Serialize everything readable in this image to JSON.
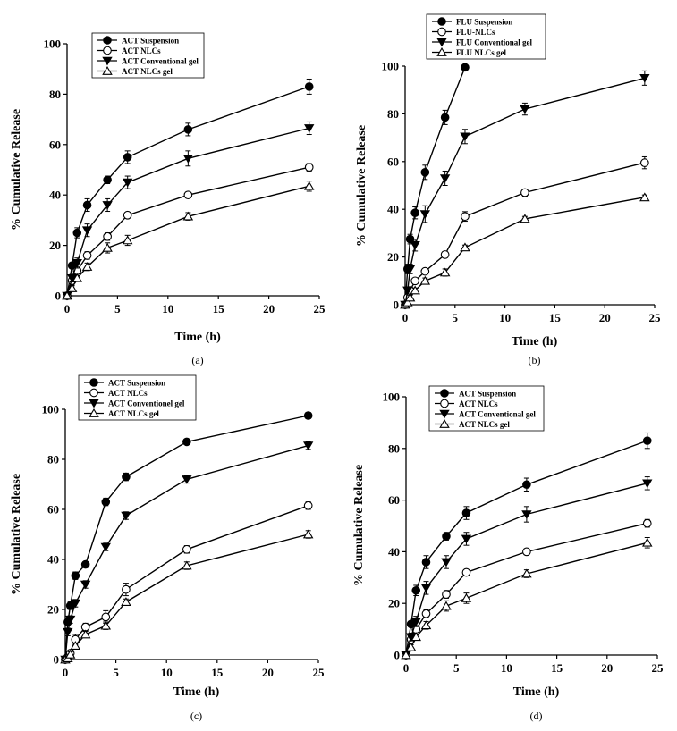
{
  "chart_data": [
    {
      "type": "line",
      "caption": "(a)",
      "xlabel": "Time (h)",
      "ylabel": "% Cumulative Release",
      "xlim": [
        0,
        25
      ],
      "ylim": [
        0,
        100
      ],
      "xticks": [
        "0",
        "5",
        "10",
        "15",
        "20",
        "25"
      ],
      "yticks": [
        "0",
        "20",
        "40",
        "60",
        "80",
        "100"
      ],
      "legend_position": "top-left",
      "series": [
        {
          "name": "ACT Suspension",
          "marker": "filled-circle",
          "x": [
            0,
            0.5,
            1,
            2,
            4,
            6,
            12,
            24
          ],
          "y": [
            0,
            12,
            25,
            36,
            46,
            55,
            66,
            83
          ],
          "err": [
            0,
            1,
            2,
            2.5,
            1.5,
            2.5,
            2.5,
            3
          ]
        },
        {
          "name": "ACT NLCs",
          "marker": "open-circle",
          "x": [
            0,
            0.5,
            1,
            2,
            4,
            6,
            12,
            24
          ],
          "y": [
            0,
            6,
            10,
            16,
            23.5,
            32,
            40,
            51
          ],
          "err": [
            0,
            1,
            1,
            1.5,
            1.5,
            1,
            1.2,
            1.5
          ]
        },
        {
          "name": "ACT Conventional gel",
          "marker": "filled-triangle-down",
          "x": [
            0,
            0.5,
            1,
            2,
            4,
            6,
            12,
            24
          ],
          "y": [
            0,
            7,
            13,
            26,
            36,
            45,
            54.5,
            66.5
          ],
          "err": [
            0,
            1.5,
            2,
            2.5,
            2.5,
            2.5,
            3,
            2.5
          ]
        },
        {
          "name": "ACT NLCs gel",
          "marker": "open-triangle-up",
          "x": [
            0,
            0.5,
            1,
            2,
            4,
            6,
            12,
            24
          ],
          "y": [
            0,
            3,
            7,
            11.5,
            19,
            22,
            31.5,
            43.5
          ],
          "err": [
            0,
            1,
            1,
            1.5,
            2,
            2,
            1.5,
            2
          ]
        }
      ]
    },
    {
      "type": "line",
      "caption": "(b)",
      "xlabel": "Time (h)",
      "ylabel": "% Cumulative Release",
      "xlim": [
        0,
        25
      ],
      "ylim": [
        0,
        100
      ],
      "xticks": [
        "0",
        "5",
        "10",
        "15",
        "20",
        "25"
      ],
      "yticks": [
        "0",
        "20",
        "40",
        "60",
        "80",
        "100"
      ],
      "legend_position": "top-left",
      "series": [
        {
          "name": "FLU Suspension",
          "marker": "filled-circle",
          "x": [
            0,
            0.25,
            0.5,
            1,
            2,
            4,
            6
          ],
          "y": [
            0,
            15,
            27.5,
            38.5,
            55.5,
            78.5,
            99.5
          ],
          "err": [
            0,
            2,
            2,
            2.5,
            3,
            3,
            1
          ]
        },
        {
          "name": "FLU-NLCs",
          "marker": "open-circle",
          "x": [
            0,
            0.25,
            0.5,
            1,
            2,
            4,
            6,
            12,
            24
          ],
          "y": [
            0,
            3,
            6,
            10,
            14,
            21,
            37,
            47,
            59.5
          ],
          "err": [
            0,
            1,
            1,
            1,
            1.2,
            1.2,
            2,
            1.5,
            2.5
          ]
        },
        {
          "name": "FLU Conventional gel",
          "marker": "filled-triangle-down",
          "x": [
            0,
            0.25,
            0.5,
            1,
            2,
            4,
            6,
            12,
            24
          ],
          "y": [
            0,
            6,
            15,
            25,
            38,
            53,
            70.5,
            82,
            95
          ],
          "err": [
            0,
            1.5,
            2,
            2.5,
            3.5,
            3,
            3,
            2.5,
            3
          ]
        },
        {
          "name": "FLU NLCs gel",
          "marker": "open-triangle-up",
          "x": [
            0,
            0.25,
            0.5,
            1,
            2,
            4,
            6,
            12,
            24
          ],
          "y": [
            0,
            1,
            3,
            6,
            10,
            13.5,
            24,
            36,
            45
          ],
          "err": [
            0,
            0.5,
            1,
            1,
            1.2,
            1.5,
            1,
            1,
            1
          ]
        }
      ]
    },
    {
      "type": "line",
      "caption": "(c)",
      "xlabel": "Time (h)",
      "ylabel": "% Cumulative Release",
      "xlim": [
        0,
        25
      ],
      "ylim": [
        0,
        100
      ],
      "xticks": [
        "0",
        "5",
        "10",
        "15",
        "20",
        "25"
      ],
      "yticks": [
        "0",
        "20",
        "40",
        "60",
        "80",
        "100"
      ],
      "legend_position": "top-left",
      "series": [
        {
          "name": "ACT  Suspension",
          "marker": "filled-circle",
          "x": [
            0,
            0.25,
            0.5,
            1,
            2,
            4,
            6,
            12,
            24
          ],
          "y": [
            0,
            15,
            21.5,
            33.5,
            38,
            63,
            73,
            87,
            97.5
          ],
          "err": [
            0,
            1.5,
            1.5,
            1.5,
            1,
            1.5,
            1.5,
            1,
            1.2
          ]
        },
        {
          "name": "ACT NLCs",
          "marker": "open-circle",
          "x": [
            0,
            0.25,
            0.5,
            1,
            2,
            4,
            6,
            12,
            24
          ],
          "y": [
            0,
            1,
            2.5,
            8,
            13,
            17,
            28,
            44,
            61.5
          ],
          "err": [
            0,
            0.5,
            1,
            2,
            1.5,
            2.5,
            2.5,
            1.5,
            1.5
          ]
        },
        {
          "name": "ACT Conventionel gel",
          "marker": "filled-triangle-down",
          "x": [
            0,
            0.25,
            0.5,
            1,
            2,
            4,
            6,
            12,
            24
          ],
          "y": [
            0,
            11,
            16,
            22.5,
            30,
            45,
            57.5,
            72,
            85.5
          ],
          "err": [
            0,
            1.5,
            1.5,
            1.5,
            1.5,
            1.5,
            1.5,
            1.5,
            1.5
          ]
        },
        {
          "name": "ACT NLCs gel",
          "marker": "open-triangle-up",
          "x": [
            0,
            0.25,
            0.5,
            1,
            2,
            4,
            6,
            12,
            24
          ],
          "y": [
            0,
            0.5,
            2,
            5.5,
            10,
            13.5,
            23,
            37.5,
            50
          ],
          "err": [
            0,
            0.5,
            1,
            1,
            1.2,
            1.5,
            1.2,
            1.5,
            1.5
          ]
        }
      ]
    },
    {
      "type": "line",
      "caption": "(d)",
      "xlabel": "Time (h)",
      "ylabel": "% Cumulative Release",
      "xlim": [
        0,
        25
      ],
      "ylim": [
        0,
        100
      ],
      "xticks": [
        "0",
        "5",
        "10",
        "15",
        "20",
        "25"
      ],
      "yticks": [
        "0",
        "20",
        "40",
        "60",
        "80",
        "100"
      ],
      "legend_position": "top-left",
      "series": [
        {
          "name": "ACT Suspension",
          "marker": "filled-circle",
          "x": [
            0,
            0.5,
            1,
            2,
            4,
            6,
            12,
            24
          ],
          "y": [
            0,
            12,
            25,
            36,
            46,
            55,
            66,
            83
          ],
          "err": [
            0,
            1,
            2,
            2.5,
            1.5,
            2.5,
            2.5,
            3
          ]
        },
        {
          "name": "ACT NLCs",
          "marker": "open-circle",
          "x": [
            0,
            0.5,
            1,
            2,
            4,
            6,
            12,
            24
          ],
          "y": [
            0,
            6,
            10,
            16,
            23.5,
            32,
            40,
            51
          ],
          "err": [
            0,
            1,
            1,
            1.5,
            1.5,
            1,
            1.2,
            1.5
          ]
        },
        {
          "name": "ACT Conventional gel",
          "marker": "filled-triangle-down",
          "x": [
            0,
            0.5,
            1,
            2,
            4,
            6,
            12,
            24
          ],
          "y": [
            0,
            7,
            13,
            26,
            36,
            45,
            54.5,
            66.5
          ],
          "err": [
            0,
            1.5,
            2,
            2.5,
            2.5,
            2.5,
            3,
            2.5
          ]
        },
        {
          "name": "ACT NLCs gel",
          "marker": "open-triangle-up",
          "x": [
            0,
            0.5,
            1,
            2,
            4,
            6,
            12,
            24
          ],
          "y": [
            0,
            3,
            7,
            11.5,
            19,
            22,
            31.5,
            43.5
          ],
          "err": [
            0,
            1,
            1,
            1.5,
            2,
            2,
            1.5,
            2
          ]
        }
      ]
    }
  ]
}
